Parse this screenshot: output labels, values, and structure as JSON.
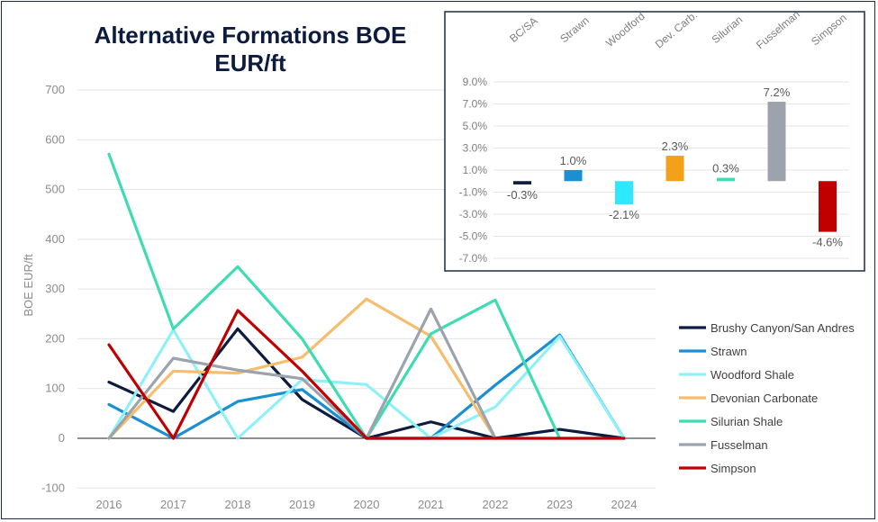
{
  "chart_data": [
    {
      "type": "line",
      "title": "Alternative Formations BOE EUR/ft",
      "title_lines": [
        "Alternative Formations BOE",
        "EUR/ft"
      ],
      "ylabel": "BOE EUR/ft",
      "xlabel": "",
      "ylim": [
        -100,
        700
      ],
      "yticks": [
        -100,
        0,
        100,
        200,
        300,
        400,
        500,
        600,
        700
      ],
      "x": [
        "2016",
        "2017",
        "2018",
        "2019",
        "2020",
        "2021",
        "2022",
        "2023",
        "2024"
      ],
      "grid": true,
      "legend_position": "right",
      "series": [
        {
          "name": "Brushy Canyon/San Andres",
          "color": "#0d1b3e",
          "values": [
            113,
            54,
            220,
            78,
            0,
            33,
            0,
            18,
            0
          ]
        },
        {
          "name": "Strawn",
          "color": "#1a8fd1",
          "values": [
            68,
            0,
            74,
            98,
            0,
            0,
            107,
            208,
            0
          ]
        },
        {
          "name": "Woodford Shale",
          "color": "#8ff0f8",
          "values": [
            0,
            218,
            0,
            118,
            108,
            0,
            63,
            205,
            0
          ]
        },
        {
          "name": "Devonian Carbonate",
          "color": "#f6bd6d",
          "values": [
            0,
            135,
            131,
            163,
            280,
            205,
            0,
            null,
            null
          ]
        },
        {
          "name": "Silurian Shale",
          "color": "#3fdcb3",
          "values": [
            571,
            220,
            345,
            200,
            0,
            210,
            278,
            0,
            null
          ]
        },
        {
          "name": "Fusselman",
          "color": "#9ca3ad",
          "values": [
            0,
            161,
            137,
            120,
            0,
            260,
            0,
            null,
            null
          ]
        },
        {
          "name": "Simpson",
          "color": "#c00000",
          "values": [
            188,
            0,
            257,
            135,
            0,
            0,
            0,
            0,
            0
          ]
        }
      ]
    },
    {
      "type": "bar",
      "title": "",
      "categories": [
        "BC/SA",
        "Strawn",
        "Woodford",
        "Dev. Carb.",
        "Silurian",
        "Fusselman",
        "Simpson"
      ],
      "values": [
        -0.3,
        1.0,
        -2.1,
        2.3,
        0.3,
        7.2,
        -4.6
      ],
      "value_labels": [
        "-0.3%",
        "1.0%",
        "-2.1%",
        "2.3%",
        "0.3%",
        "7.2%",
        "-4.6%"
      ],
      "colors": [
        "#0d1b3e",
        "#1a8fd1",
        "#2ee8ff",
        "#f4a11a",
        "#3fdcb3",
        "#9ca3ad",
        "#c00000"
      ],
      "ylim": [
        -7.0,
        9.0
      ],
      "yticks": [
        9.0,
        7.0,
        5.0,
        3.0,
        1.0,
        -1.0,
        -3.0,
        -5.0,
        -7.0
      ],
      "ytick_labels": [
        "9.0%",
        "7.0%",
        "5.0%",
        "3.0%",
        "1.0%",
        "-1.0%",
        "-3.0%",
        "-5.0%",
        "-7.0%"
      ],
      "grid": true
    }
  ]
}
